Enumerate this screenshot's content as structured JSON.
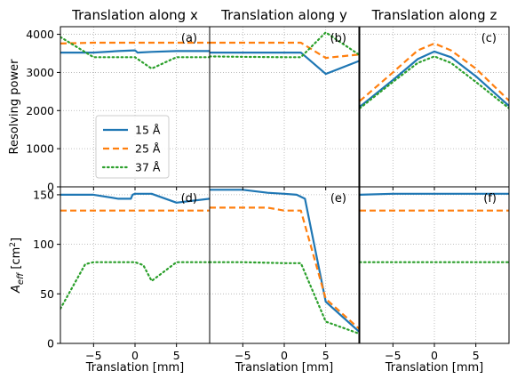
{
  "chart_data": {
    "type": "line",
    "column_titles": [
      "Translation along x",
      "Translation along y",
      "Translation along z"
    ],
    "xlabel": "Translation [mm]",
    "xlim": [
      -9,
      9
    ],
    "xticks": [
      -5,
      0,
      5
    ],
    "x_tick_labels": [
      "−5",
      "0",
      "5"
    ],
    "rows": [
      {
        "ylabel": "Resolving power",
        "ylim": [
          0,
          4200
        ],
        "yticks": [
          0,
          1000,
          2000,
          3000,
          4000
        ],
        "y_tick_labels": [
          "0",
          "1000",
          "2000",
          "3000",
          "4000"
        ]
      },
      {
        "ylabel": "A",
        "ylabel_sub": "eff",
        "ylabel_unit_pre": " [cm",
        "ylabel_unit_sup": "2",
        "ylabel_unit_post": "]",
        "ylim": [
          0,
          158
        ],
        "yticks": [
          0,
          50,
          100,
          150
        ],
        "y_tick_labels": [
          "0",
          "50",
          "100",
          "150"
        ]
      }
    ],
    "series_styles": [
      {
        "name": "15 Å",
        "color": "#1f77b4",
        "dash": ""
      },
      {
        "name": "25 Å",
        "color": "#ff7f0e",
        "dash": "7,4"
      },
      {
        "name": "37 Å",
        "color": "#2ca02c",
        "dash": "1.6,3.4"
      }
    ],
    "legend": {
      "entries": [
        "15 Å",
        "25 Å",
        "37 Å"
      ],
      "placement": "panel (a), lower-left"
    },
    "grid": true,
    "panels": [
      {
        "label": "(a)",
        "row": 0,
        "col": 0,
        "series": [
          {
            "name": "15 Å",
            "x": [
              -9,
              -5,
              -2,
              0,
              0.3,
              2,
              5,
              9
            ],
            "y": [
              3520,
              3520,
              3560,
              3580,
              3520,
              3540,
              3560,
              3560
            ]
          },
          {
            "name": "25 Å",
            "x": [
              -9,
              -5,
              0,
              5,
              9
            ],
            "y": [
              3760,
              3780,
              3780,
              3780,
              3780
            ]
          },
          {
            "name": "37 Å",
            "x": [
              -9,
              -5,
              0,
              2,
              5,
              9
            ],
            "y": [
              3930,
              3400,
              3400,
              3100,
              3400,
              3400
            ]
          }
        ]
      },
      {
        "label": "(b)",
        "row": 0,
        "col": 1,
        "series": [
          {
            "name": "15 Å",
            "x": [
              -9,
              -5,
              0,
              2,
              5,
              9
            ],
            "y": [
              3520,
              3520,
              3520,
              3520,
              2960,
              3300
            ]
          },
          {
            "name": "25 Å",
            "x": [
              -9,
              -5,
              0,
              2,
              5,
              9
            ],
            "y": [
              3780,
              3780,
              3780,
              3780,
              3380,
              3470
            ]
          },
          {
            "name": "37 Å",
            "x": [
              -9,
              -5,
              0,
              2,
              5,
              9
            ],
            "y": [
              3420,
              3410,
              3400,
              3400,
              4050,
              3470
            ]
          }
        ]
      },
      {
        "label": "(c)",
        "row": 0,
        "col": 2,
        "series": [
          {
            "name": "15 Å",
            "x": [
              -9,
              -5,
              -2,
              0,
              2,
              5,
              9
            ],
            "y": [
              2100,
              2800,
              3350,
              3550,
              3400,
              2900,
              2120
            ]
          },
          {
            "name": "25 Å",
            "x": [
              -9,
              -5,
              -2,
              0,
              2,
              5,
              9
            ],
            "y": [
              2250,
              3000,
              3580,
              3760,
              3580,
              3100,
              2260
            ]
          },
          {
            "name": "37 Å",
            "x": [
              -9,
              -5,
              -2,
              0,
              2,
              5,
              9
            ],
            "y": [
              2060,
              2750,
              3250,
              3420,
              3250,
              2750,
              2060
            ]
          }
        ]
      },
      {
        "label": "(d)",
        "row": 1,
        "col": 0,
        "series": [
          {
            "name": "15 Å",
            "x": [
              -9,
              -5,
              -2,
              -0.5,
              -0.3,
              0,
              2,
              5,
              9
            ],
            "y": [
              150,
              150,
              146,
              146,
              150,
              151,
              151,
              142,
              146
            ]
          },
          {
            "name": "25 Å",
            "x": [
              -9,
              0,
              9
            ],
            "y": [
              134,
              134,
              134
            ]
          },
          {
            "name": "37 Å",
            "x": [
              -9,
              -6,
              -5,
              0,
              1,
              2,
              5,
              9
            ],
            "y": [
              35,
              80,
              82,
              82,
              79,
              63,
              82,
              82
            ]
          }
        ]
      },
      {
        "label": "(e)",
        "row": 1,
        "col": 1,
        "series": [
          {
            "name": "15 Å",
            "x": [
              -9,
              -5,
              -2,
              0,
              1.5,
              2.5,
              5,
              9
            ],
            "y": [
              155,
              155,
              152,
              151,
              150,
              146,
              42,
              12
            ]
          },
          {
            "name": "25 Å",
            "x": [
              -9,
              -5,
              -2,
              0,
              2,
              5,
              9
            ],
            "y": [
              137,
              137,
              137,
              134,
              134,
              45,
              15
            ]
          },
          {
            "name": "37 Å",
            "x": [
              -9,
              -5,
              0,
              2,
              5,
              9
            ],
            "y": [
              82,
              82,
              81,
              81,
              22,
              10
            ]
          }
        ]
      },
      {
        "label": "(f)",
        "row": 1,
        "col": 2,
        "series": [
          {
            "name": "15 Å",
            "x": [
              -9,
              -5,
              0,
              5,
              9
            ],
            "y": [
              150,
              151,
              151,
              151,
              151
            ]
          },
          {
            "name": "25 Å",
            "x": [
              -9,
              0,
              9
            ],
            "y": [
              134,
              134,
              134
            ]
          },
          {
            "name": "37 Å",
            "x": [
              -9,
              0,
              9
            ],
            "y": [
              82,
              82,
              82
            ]
          }
        ]
      }
    ]
  }
}
